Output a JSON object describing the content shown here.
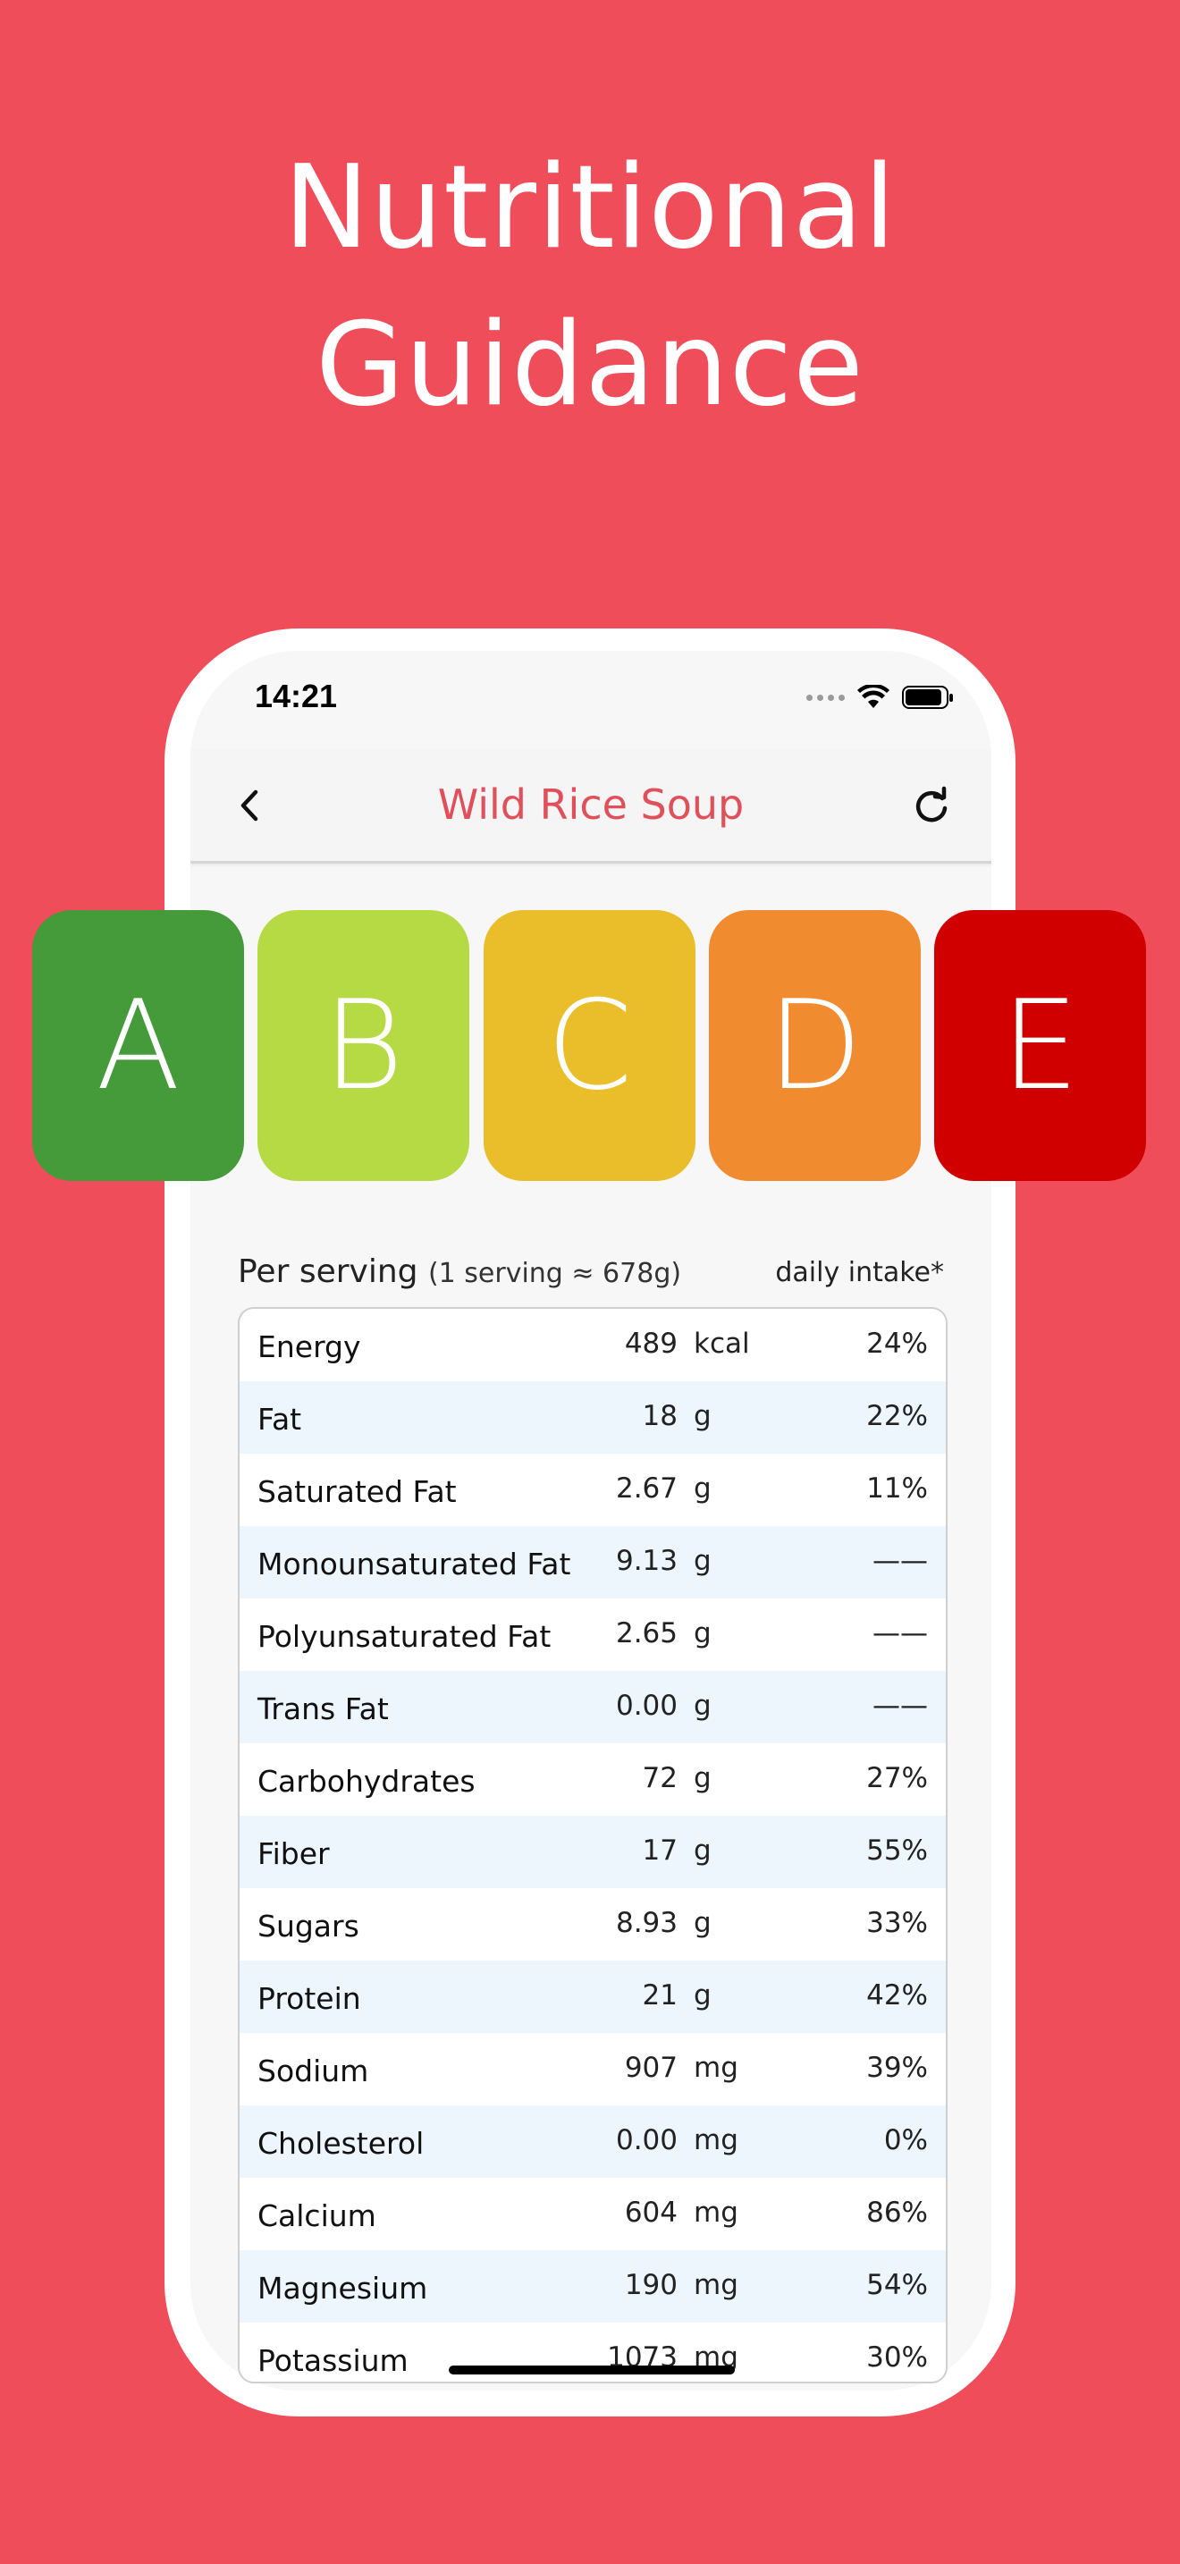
{
  "headline": {
    "line1": "Nutritional",
    "line2": "Guidance"
  },
  "status_bar": {
    "time": "14:21"
  },
  "navbar": {
    "title": "Wild Rice Soup"
  },
  "grades": [
    {
      "letter": "A",
      "color": "#459A3A"
    },
    {
      "letter": "B",
      "color": "#B5DA44"
    },
    {
      "letter": "C",
      "color": "#EABD2A"
    },
    {
      "letter": "D",
      "color": "#F18B30"
    },
    {
      "letter": "E",
      "color": "#D00000"
    }
  ],
  "per_serving": {
    "title": "Per serving",
    "subtitle": "(1 serving ≈ 678g)",
    "daily_label": "daily intake*"
  },
  "nutrients": [
    {
      "name": "Energy",
      "value": "489",
      "unit": "kcal",
      "daily": "24%"
    },
    {
      "name": "Fat",
      "value": "18",
      "unit": "g",
      "daily": "22%"
    },
    {
      "name": "Saturated Fat",
      "value": "2.67",
      "unit": "g",
      "daily": "11%"
    },
    {
      "name": "Monounsaturated Fat",
      "value": "9.13",
      "unit": "g",
      "daily": "——"
    },
    {
      "name": "Polyunsaturated Fat",
      "value": "2.65",
      "unit": "g",
      "daily": "——"
    },
    {
      "name": "Trans Fat",
      "value": "0.00",
      "unit": "g",
      "daily": "——"
    },
    {
      "name": "Carbohydrates",
      "value": "72",
      "unit": "g",
      "daily": "27%"
    },
    {
      "name": "Fiber",
      "value": "17",
      "unit": "g",
      "daily": "55%"
    },
    {
      "name": "Sugars",
      "value": "8.93",
      "unit": "g",
      "daily": "33%"
    },
    {
      "name": "Protein",
      "value": "21",
      "unit": "g",
      "daily": "42%"
    },
    {
      "name": "Sodium",
      "value": "907",
      "unit": "mg",
      "daily": "39%"
    },
    {
      "name": "Cholesterol",
      "value": "0.00",
      "unit": "mg",
      "daily": "0%"
    },
    {
      "name": "Calcium",
      "value": "604",
      "unit": "mg",
      "daily": "86%"
    },
    {
      "name": "Magnesium",
      "value": "190",
      "unit": "mg",
      "daily": "54%"
    },
    {
      "name": "Potassium",
      "value": "1073",
      "unit": "mg",
      "daily": "30%"
    }
  ]
}
